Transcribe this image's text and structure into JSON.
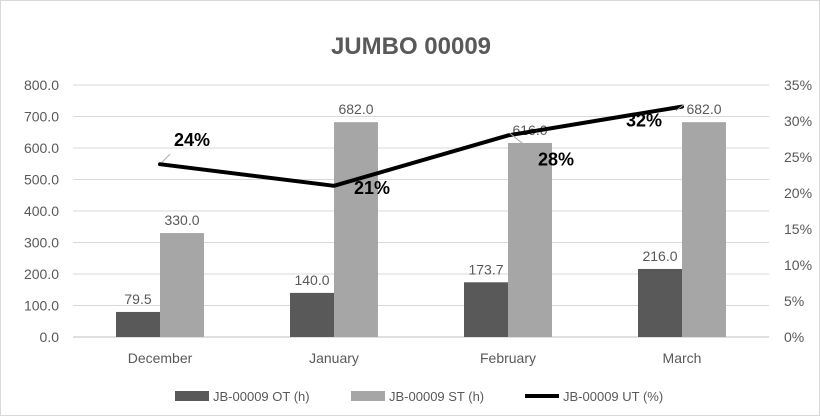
{
  "chart_data": {
    "type": "bar",
    "title": "JUMBO 00009",
    "categories": [
      "December",
      "January",
      "February",
      "March"
    ],
    "series": [
      {
        "name": "JB-00009 OT (h)",
        "type": "bar",
        "axis": "left",
        "color": "#595959",
        "values": [
          79.5,
          140.0,
          173.7,
          216.0
        ],
        "labels": [
          "79.5",
          "140.0",
          "173.7",
          "216.0"
        ]
      },
      {
        "name": "JB-00009 ST (h)",
        "type": "bar",
        "axis": "left",
        "color": "#a6a6a6",
        "values": [
          330.0,
          682.0,
          616.0,
          682.0
        ],
        "labels": [
          "330.0",
          "682.0",
          "616.0",
          "682.0"
        ]
      },
      {
        "name": "JB-00009 UT (%)",
        "type": "line",
        "axis": "right",
        "color": "#000000",
        "values": [
          24,
          21,
          28,
          32
        ],
        "labels": [
          "24%",
          "21%",
          "28%",
          "32%"
        ]
      }
    ],
    "y_left": {
      "min": 0,
      "max": 800,
      "step": 100,
      "ticks": [
        "0.0",
        "100.0",
        "200.0",
        "300.0",
        "400.0",
        "500.0",
        "600.0",
        "700.0",
        "800.0"
      ]
    },
    "y_right": {
      "min": 0,
      "max": 35,
      "step": 5,
      "ticks": [
        "0%",
        "5%",
        "10%",
        "15%",
        "20%",
        "25%",
        "30%",
        "35%"
      ]
    },
    "grid": true,
    "legend_position": "bottom"
  }
}
